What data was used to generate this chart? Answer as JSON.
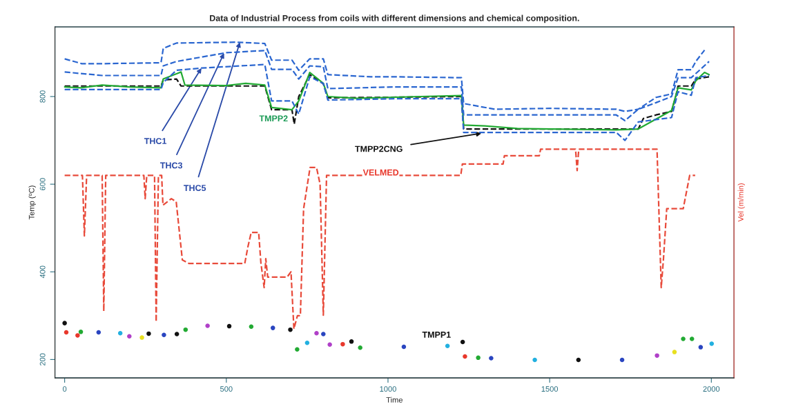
{
  "chart_data": {
    "type": "line",
    "title": "Data of Industrial Process from coils with different dimensions and chemical composition.",
    "xlabel": "Time",
    "ylabel": "Temp (ºC)",
    "y2label": "Vel (m/min)",
    "xlim": [
      -30,
      2070
    ],
    "ylim": [
      158,
      959
    ],
    "xticks": [
      0,
      500,
      1000,
      1500,
      2000
    ],
    "yticks": [
      200,
      400,
      600,
      800
    ],
    "grid": false,
    "series": [
      {
        "line_style": "dashed",
        "color": "#2a66d0",
        "x": [
          0,
          53,
          116,
          298,
          305,
          346,
          528,
          619,
          640,
          703,
          724,
          758,
          800,
          814,
          947,
          1022,
          1227,
          1234,
          1330,
          1501,
          1706,
          1733,
          1774,
          1829,
          1877,
          1897,
          1938,
          1952,
          1979
        ],
        "values": [
          886,
          875,
          875,
          877,
          910,
          922,
          924,
          921,
          883,
          883,
          860,
          886,
          886,
          850,
          845,
          845,
          843,
          784,
          771,
          773,
          771,
          766,
          771,
          798,
          806,
          861,
          861,
          880,
          906
        ]
      },
      {
        "line_style": "dashed",
        "color": "#2a66d0",
        "x": [
          0,
          116,
          298,
          305,
          346,
          500,
          619,
          640,
          703,
          724,
          758,
          800,
          814,
          1022,
          1227,
          1234,
          1706,
          1733,
          1774,
          1829,
          1877,
          1897,
          1938,
          1993
        ],
        "values": [
          856,
          848,
          848,
          870,
          880,
          900,
          905,
          862,
          862,
          840,
          870,
          868,
          818,
          822,
          822,
          758,
          758,
          745,
          771,
          786,
          800,
          843,
          843,
          880
        ]
      },
      {
        "line_style": "dashed",
        "color": "#2a66d0",
        "x": [
          0,
          298,
          305,
          346,
          423,
          619,
          640,
          703,
          724,
          758,
          800,
          814,
          1022,
          1227,
          1234,
          1706,
          1733,
          1774,
          1877,
          1897,
          1938,
          1952,
          1993
        ],
        "values": [
          816,
          816,
          832,
          860,
          865,
          873,
          790,
          790,
          760,
          845,
          830,
          792,
          795,
          795,
          718,
          718,
          700,
          742,
          752,
          811,
          803,
          843,
          848
        ]
      },
      {
        "line_style": "solid",
        "color": "#22aa33",
        "x": [
          0,
          50,
          116,
          200,
          298,
          305,
          346,
          360,
          372,
          500,
          560,
          619,
          640,
          703,
          724,
          758,
          800,
          814,
          900,
          1100,
          1227,
          1234,
          1300,
          1400,
          1706,
          1774,
          1877,
          1897,
          1938,
          1952,
          1979,
          1993
        ],
        "values": [
          822,
          820,
          826,
          822,
          820,
          840,
          852,
          856,
          826,
          825,
          830,
          826,
          775,
          770,
          790,
          855,
          830,
          800,
          796,
          800,
          802,
          735,
          733,
          727,
          724,
          726,
          768,
          820,
          815,
          836,
          855,
          850
        ]
      },
      {
        "line_style": "dashed",
        "color": "#111111",
        "x": [
          0,
          298,
          305,
          346,
          360,
          619,
          640,
          703,
          710,
          724,
          758,
          800,
          814,
          1227,
          1234,
          1501,
          1774,
          1790,
          1829,
          1877,
          1890,
          1897,
          1938,
          1952,
          1993
        ],
        "values": [
          824,
          824,
          838,
          840,
          824,
          824,
          770,
          770,
          737,
          800,
          850,
          829,
          797,
          800,
          726,
          726,
          726,
          750,
          758,
          766,
          800,
          824,
          824,
          840,
          845
        ]
      },
      {
        "line_style": "dashed",
        "color": "#e84a3a",
        "x": [
          0,
          55,
          61,
          68,
          116,
          121,
          127,
          245,
          249,
          254,
          278,
          283,
          290,
          300,
          304,
          330,
          345,
          364,
          385,
          557,
          567,
          577,
          600,
          607,
          617,
          622,
          628,
          688,
          700,
          709,
          720,
          729,
          739,
          759,
          779,
          790,
          800,
          810,
          1225,
          1230,
          1356,
          1360,
          1468,
          1472,
          1580,
          1585,
          1590,
          1832,
          1845,
          1852,
          1862,
          1913,
          1933,
          1950
        ],
        "values": [
          620,
          620,
          482,
          620,
          620,
          310,
          620,
          620,
          567,
          620,
          620,
          286,
          620,
          620,
          552,
          567,
          560,
          427,
          419,
          419,
          458,
          490,
          490,
          420,
          364,
          430,
          388,
          388,
          400,
          270,
          300,
          300,
          544,
          638,
          638,
          600,
          301,
          620,
          620,
          646,
          646,
          665,
          665,
          680,
          680,
          631,
          680,
          680,
          364,
          430,
          544,
          544,
          620,
          620
        ]
      },
      {
        "type": "scatter",
        "marker": "circle",
        "x": [
          0,
          5,
          40,
          50,
          105,
          172,
          200,
          239,
          260,
          307,
          347,
          374,
          442,
          509,
          577,
          644,
          698,
          719,
          750,
          779,
          800,
          820,
          860,
          887,
          914,
          1049,
          1184,
          1231,
          1238,
          1279,
          1319,
          1454,
          1589,
          1724,
          1832,
          1886,
          1913,
          1940,
          1967,
          2001
        ],
        "values": [
          283,
          262,
          255,
          263,
          262,
          260,
          253,
          250,
          259,
          256,
          258,
          268,
          277,
          276,
          275,
          272,
          268,
          223,
          238,
          260,
          258,
          234,
          235,
          241,
          227,
          229,
          231,
          240,
          207,
          204,
          203,
          199,
          199,
          199,
          209,
          217,
          247,
          247,
          228,
          236
        ],
        "colors": [
          "#111111",
          "#e8382c",
          "#e8382c",
          "#22aa33",
          "#2a45c0",
          "#22b0e0",
          "#b040c8",
          "#e8e020",
          "#111111",
          "#2a45c0",
          "#111111",
          "#22aa33",
          "#b040c8",
          "#111111",
          "#22aa33",
          "#2a45c0",
          "#111111",
          "#22aa33",
          "#22b0e0",
          "#b040c8",
          "#2a45c0",
          "#b040c8",
          "#e8382c",
          "#111111",
          "#22aa33",
          "#2a45c0",
          "#22b0e0",
          "#111111",
          "#e8382c",
          "#22aa33",
          "#2a45c0",
          "#22b0e0",
          "#111111",
          "#2a45c0",
          "#b040c8",
          "#e8e020",
          "#22aa33",
          "#22aa33",
          "#2a45c0",
          "#22b0e0"
        ]
      }
    ],
    "annotations": [
      {
        "text": "THC1",
        "x": 423,
        "y": 865
      },
      {
        "text": "THC3",
        "x": 493,
        "y": 899
      },
      {
        "text": "THC5",
        "x": 542,
        "y": 924
      },
      "TMPP2",
      {
        "text": "TMPP2CNG",
        "x": 1289,
        "y": 716
      },
      {
        "text": "VELMED",
        "x": 978,
        "y": 625
      },
      "TMPP1"
    ]
  }
}
